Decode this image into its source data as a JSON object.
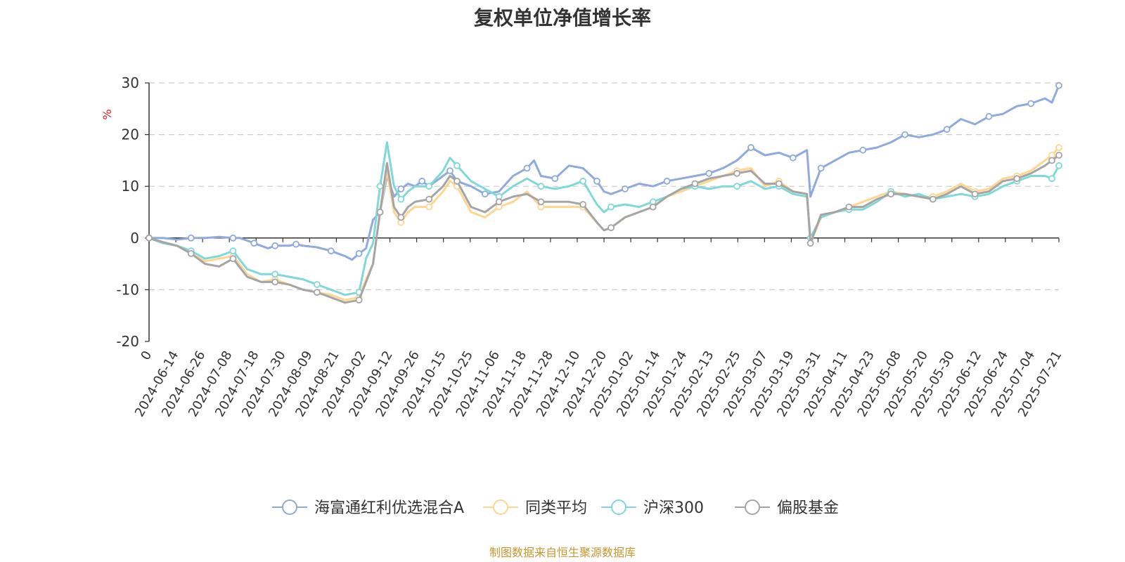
{
  "page": {
    "title": "复权单位净值增长率",
    "source": "制图数据来自恒生聚源数据库",
    "source_color": "#c8962e",
    "unit_color": "#e02020"
  },
  "chart_data": {
    "type": "line",
    "title": "复权单位净值增长率",
    "ylabel": "%",
    "xlabel": "",
    "ylim": [
      -20,
      30
    ],
    "y_ticks": [
      -20,
      -10,
      0,
      10,
      20,
      30
    ],
    "grid": "dashed horizontal",
    "legend_position": "bottom",
    "x_labels": [
      "0",
      "2024-06-14",
      "2024-06-26",
      "2024-07-08",
      "2024-07-18",
      "2024-07-30",
      "2024-08-09",
      "2024-08-21",
      "2024-09-02",
      "2024-09-12",
      "2024-09-26",
      "2024-10-15",
      "2024-10-25",
      "2024-11-06",
      "2024-11-18",
      "2024-11-28",
      "2024-12-10",
      "2024-12-20",
      "2025-01-02",
      "2025-01-14",
      "2025-01-24",
      "2025-02-13",
      "2025-02-25",
      "2025-03-07",
      "2025-03-19",
      "2025-03-31",
      "2025-04-11",
      "2025-04-23",
      "2025-05-08",
      "2025-05-20",
      "2025-05-30",
      "2025-06-12",
      "2025-06-24",
      "2025-07-04",
      "2025-07-21"
    ],
    "series": [
      {
        "name": "海富通红利优选混合A",
        "color": "#8faadc",
        "points": [
          [
            0,
            0
          ],
          [
            2,
            0
          ],
          [
            4,
            -0.3
          ],
          [
            6,
            0
          ],
          [
            8,
            0
          ],
          [
            10,
            0.2
          ],
          [
            12,
            0
          ],
          [
            13,
            0
          ],
          [
            14,
            -0.5
          ],
          [
            15,
            -1
          ],
          [
            16,
            -1.5
          ],
          [
            17,
            -2
          ],
          [
            18,
            -1.5
          ],
          [
            19,
            -1.5
          ],
          [
            20,
            -1.5
          ],
          [
            21,
            -1.2
          ],
          [
            22,
            -1.5
          ],
          [
            24,
            -1.8
          ],
          [
            26,
            -2.5
          ],
          [
            28,
            -3.5
          ],
          [
            29,
            -4.2
          ],
          [
            30,
            -3
          ],
          [
            31,
            -2
          ],
          [
            32,
            3.5
          ],
          [
            33,
            5
          ],
          [
            34,
            12
          ],
          [
            35,
            8
          ],
          [
            36,
            9.5
          ],
          [
            37,
            10.5
          ],
          [
            38,
            10
          ],
          [
            39,
            11
          ],
          [
            40,
            10
          ],
          [
            42,
            12
          ],
          [
            43,
            13
          ],
          [
            44,
            11
          ],
          [
            46,
            10
          ],
          [
            48,
            8.5
          ],
          [
            50,
            9
          ],
          [
            52,
            12
          ],
          [
            54,
            13.5
          ],
          [
            55,
            15
          ],
          [
            56,
            12
          ],
          [
            58,
            11.5
          ],
          [
            60,
            14
          ],
          [
            62,
            13.5
          ],
          [
            64,
            11
          ],
          [
            65,
            9
          ],
          [
            66,
            8.5
          ],
          [
            68,
            9.5
          ],
          [
            70,
            10.5
          ],
          [
            72,
            10
          ],
          [
            74,
            11
          ],
          [
            76,
            11.5
          ],
          [
            78,
            12
          ],
          [
            80,
            12.5
          ],
          [
            82,
            13.5
          ],
          [
            84,
            15
          ],
          [
            86,
            17.5
          ],
          [
            88,
            16
          ],
          [
            90,
            16.5
          ],
          [
            92,
            15.5
          ],
          [
            94,
            17
          ],
          [
            94.5,
            8
          ],
          [
            96,
            13.5
          ],
          [
            98,
            15
          ],
          [
            100,
            16.5
          ],
          [
            102,
            17
          ],
          [
            104,
            17.5
          ],
          [
            106,
            18.5
          ],
          [
            108,
            20
          ],
          [
            110,
            19.5
          ],
          [
            112,
            20
          ],
          [
            114,
            21
          ],
          [
            116,
            23
          ],
          [
            118,
            22
          ],
          [
            120,
            23.5
          ],
          [
            122,
            24
          ],
          [
            124,
            25.5
          ],
          [
            126,
            26
          ],
          [
            128,
            27
          ],
          [
            129,
            26.2
          ],
          [
            130,
            29.5
          ]
        ]
      },
      {
        "name": "同类平均",
        "color": "#ffd592",
        "points": [
          [
            0,
            0
          ],
          [
            2,
            -1
          ],
          [
            4,
            -1.5
          ],
          [
            6,
            -3
          ],
          [
            8,
            -4.5
          ],
          [
            10,
            -4
          ],
          [
            12,
            -3.5
          ],
          [
            14,
            -7
          ],
          [
            16,
            -8.5
          ],
          [
            18,
            -8
          ],
          [
            20,
            -9
          ],
          [
            22,
            -10
          ],
          [
            24,
            -10.5
          ],
          [
            26,
            -11
          ],
          [
            28,
            -12
          ],
          [
            30,
            -11.5
          ],
          [
            31,
            -8
          ],
          [
            32,
            -5
          ],
          [
            33,
            5
          ],
          [
            34,
            13
          ],
          [
            35,
            5
          ],
          [
            36,
            3
          ],
          [
            37,
            5
          ],
          [
            38,
            6
          ],
          [
            40,
            6
          ],
          [
            42,
            9
          ],
          [
            43,
            11
          ],
          [
            44,
            10
          ],
          [
            46,
            5
          ],
          [
            48,
            4
          ],
          [
            50,
            6
          ],
          [
            52,
            7
          ],
          [
            54,
            9
          ],
          [
            56,
            6
          ],
          [
            58,
            6
          ],
          [
            60,
            6
          ],
          [
            62,
            6
          ],
          [
            64,
            3
          ],
          [
            65,
            1.5
          ],
          [
            66,
            2
          ],
          [
            68,
            4
          ],
          [
            70,
            5
          ],
          [
            72,
            6
          ],
          [
            74,
            8
          ],
          [
            76,
            9
          ],
          [
            78,
            10
          ],
          [
            80,
            11
          ],
          [
            82,
            12
          ],
          [
            84,
            13
          ],
          [
            86,
            13.5
          ],
          [
            88,
            10
          ],
          [
            90,
            11
          ],
          [
            92,
            9
          ],
          [
            94,
            8.5
          ],
          [
            94.5,
            -1
          ],
          [
            96,
            4
          ],
          [
            98,
            5
          ],
          [
            100,
            6
          ],
          [
            102,
            7
          ],
          [
            104,
            8
          ],
          [
            106,
            9
          ],
          [
            108,
            8.5
          ],
          [
            110,
            8
          ],
          [
            112,
            8
          ],
          [
            114,
            9
          ],
          [
            116,
            10.5
          ],
          [
            118,
            9
          ],
          [
            120,
            9.5
          ],
          [
            122,
            11.5
          ],
          [
            124,
            12
          ],
          [
            126,
            13
          ],
          [
            128,
            15
          ],
          [
            129,
            16
          ],
          [
            130,
            17.5
          ]
        ]
      },
      {
        "name": "沪深300",
        "color": "#80d8d8",
        "points": [
          [
            0,
            0
          ],
          [
            2,
            -1
          ],
          [
            4,
            -1.5
          ],
          [
            6,
            -2.5
          ],
          [
            8,
            -4
          ],
          [
            10,
            -3.5
          ],
          [
            12,
            -2.5
          ],
          [
            14,
            -6
          ],
          [
            16,
            -7
          ],
          [
            18,
            -7
          ],
          [
            20,
            -7.5
          ],
          [
            22,
            -8
          ],
          [
            24,
            -9
          ],
          [
            26,
            -10
          ],
          [
            28,
            -11
          ],
          [
            30,
            -10.5
          ],
          [
            31,
            -4
          ],
          [
            32,
            -1
          ],
          [
            33,
            10
          ],
          [
            34,
            18.5
          ],
          [
            35,
            10
          ],
          [
            36,
            7.5
          ],
          [
            37,
            9
          ],
          [
            38,
            10
          ],
          [
            40,
            10
          ],
          [
            42,
            13
          ],
          [
            43,
            15.5
          ],
          [
            44,
            14
          ],
          [
            46,
            11
          ],
          [
            48,
            9.5
          ],
          [
            50,
            8
          ],
          [
            52,
            10
          ],
          [
            54,
            11.5
          ],
          [
            56,
            10
          ],
          [
            58,
            9.5
          ],
          [
            60,
            10
          ],
          [
            62,
            11
          ],
          [
            64,
            6.5
          ],
          [
            65,
            5
          ],
          [
            66,
            6
          ],
          [
            68,
            6.5
          ],
          [
            70,
            6
          ],
          [
            72,
            7
          ],
          [
            74,
            8
          ],
          [
            76,
            9.5
          ],
          [
            78,
            10
          ],
          [
            80,
            9.5
          ],
          [
            82,
            10
          ],
          [
            84,
            10
          ],
          [
            86,
            11
          ],
          [
            88,
            9.5
          ],
          [
            90,
            10
          ],
          [
            92,
            8.5
          ],
          [
            94,
            8
          ],
          [
            94.5,
            0
          ],
          [
            96,
            4
          ],
          [
            98,
            5
          ],
          [
            100,
            5.5
          ],
          [
            102,
            5.5
          ],
          [
            104,
            7
          ],
          [
            106,
            9
          ],
          [
            108,
            8
          ],
          [
            110,
            8.5
          ],
          [
            112,
            7.5
          ],
          [
            114,
            8
          ],
          [
            116,
            8.5
          ],
          [
            118,
            8
          ],
          [
            120,
            8.5
          ],
          [
            122,
            10
          ],
          [
            124,
            11
          ],
          [
            126,
            12
          ],
          [
            128,
            12
          ],
          [
            129,
            11.5
          ],
          [
            130,
            14
          ]
        ]
      },
      {
        "name": "偏股基金",
        "color": "#a5a5a5",
        "points": [
          [
            0,
            0
          ],
          [
            2,
            -0.8
          ],
          [
            4,
            -1.5
          ],
          [
            6,
            -3
          ],
          [
            8,
            -5
          ],
          [
            10,
            -5.5
          ],
          [
            12,
            -4
          ],
          [
            14,
            -7.5
          ],
          [
            16,
            -8.5
          ],
          [
            18,
            -8.5
          ],
          [
            20,
            -9
          ],
          [
            22,
            -10
          ],
          [
            24,
            -10.5
          ],
          [
            26,
            -11.5
          ],
          [
            28,
            -12.5
          ],
          [
            30,
            -12
          ],
          [
            31,
            -8.5
          ],
          [
            32,
            -5
          ],
          [
            33,
            5
          ],
          [
            34,
            14.5
          ],
          [
            35,
            6
          ],
          [
            36,
            4
          ],
          [
            37,
            6
          ],
          [
            38,
            7
          ],
          [
            40,
            7.5
          ],
          [
            42,
            10
          ],
          [
            43,
            12
          ],
          [
            44,
            11
          ],
          [
            46,
            6
          ],
          [
            48,
            5
          ],
          [
            50,
            7
          ],
          [
            52,
            8
          ],
          [
            54,
            8.5
          ],
          [
            56,
            7
          ],
          [
            58,
            7
          ],
          [
            60,
            7
          ],
          [
            62,
            6.5
          ],
          [
            64,
            3
          ],
          [
            65,
            1.5
          ],
          [
            66,
            2
          ],
          [
            68,
            4
          ],
          [
            70,
            5
          ],
          [
            72,
            6
          ],
          [
            74,
            8
          ],
          [
            76,
            9.5
          ],
          [
            78,
            10.5
          ],
          [
            80,
            11.5
          ],
          [
            82,
            12
          ],
          [
            84,
            12.5
          ],
          [
            86,
            13
          ],
          [
            88,
            10.5
          ],
          [
            90,
            10.5
          ],
          [
            92,
            9
          ],
          [
            94,
            8.5
          ],
          [
            94.5,
            -1
          ],
          [
            96,
            4.5
          ],
          [
            98,
            5
          ],
          [
            100,
            6
          ],
          [
            102,
            6
          ],
          [
            104,
            7.5
          ],
          [
            106,
            8.5
          ],
          [
            108,
            8.5
          ],
          [
            110,
            8
          ],
          [
            112,
            7.5
          ],
          [
            114,
            8.5
          ],
          [
            116,
            10
          ],
          [
            118,
            8.5
          ],
          [
            120,
            9
          ],
          [
            122,
            11
          ],
          [
            124,
            11.5
          ],
          [
            126,
            12.5
          ],
          [
            128,
            14
          ],
          [
            129,
            15
          ],
          [
            130,
            16
          ]
        ]
      }
    ]
  }
}
